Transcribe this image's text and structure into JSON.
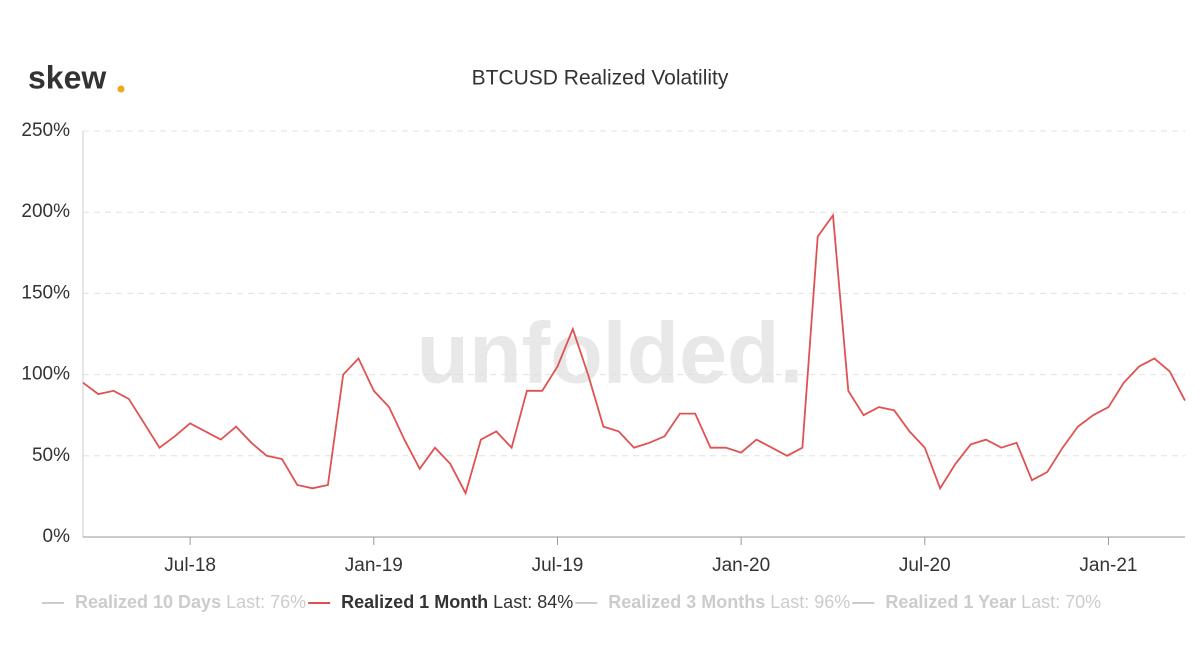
{
  "logo": "skew",
  "watermark": "unfolded.",
  "chart_data": {
    "type": "line",
    "title": "BTCUSD Realized Volatility",
    "categories": [
      null,
      null,
      null,
      null,
      null,
      null,
      null,
      "Jul-18",
      null,
      null,
      null,
      null,
      null,
      null,
      null,
      null,
      null,
      null,
      null,
      "Jan-19",
      null,
      null,
      null,
      null,
      null,
      null,
      null,
      null,
      null,
      null,
      null,
      "Jul-19",
      null,
      null,
      null,
      null,
      null,
      null,
      null,
      null,
      null,
      null,
      null,
      "Jan-20",
      null,
      null,
      null,
      null,
      null,
      null,
      null,
      null,
      null,
      null,
      null,
      "Jul-20",
      null,
      null,
      null,
      null,
      null,
      null,
      null,
      null,
      null,
      null,
      null,
      "Jan-21",
      null,
      null,
      null,
      null,
      null
    ],
    "series": [
      {
        "name": "Realized 1 Month",
        "last_label": "Last: 84%",
        "color": "#e05252",
        "values": [
          95,
          88,
          90,
          85,
          70,
          55,
          62,
          70,
          65,
          60,
          68,
          58,
          50,
          48,
          32,
          30,
          32,
          100,
          110,
          90,
          80,
          60,
          42,
          55,
          45,
          27,
          60,
          65,
          55,
          90,
          90,
          105,
          128,
          100,
          68,
          65,
          55,
          58,
          62,
          76,
          76,
          55,
          55,
          52,
          60,
          55,
          50,
          55,
          185,
          198,
          90,
          75,
          80,
          78,
          65,
          55,
          30,
          45,
          57,
          60,
          55,
          58,
          35,
          40,
          55,
          68,
          75,
          80,
          95,
          105,
          110,
          102,
          84
        ]
      }
    ],
    "hidden_series": [
      {
        "name": "Realized 10 Days",
        "last_label": "Last: 76%"
      },
      {
        "name": "Realized 3 Months",
        "last_label": "Last: 96%"
      },
      {
        "name": "Realized 1 Year",
        "last_label": "Last: 70%"
      }
    ],
    "ylim": [
      0,
      250
    ],
    "yticks": [
      {
        "value": 0,
        "label": "0%"
      },
      {
        "value": 50,
        "label": "50%"
      },
      {
        "value": 100,
        "label": "100%"
      },
      {
        "value": 150,
        "label": "150%"
      },
      {
        "value": 200,
        "label": "200%"
      },
      {
        "value": 250,
        "label": "250%"
      }
    ],
    "grid": true
  }
}
